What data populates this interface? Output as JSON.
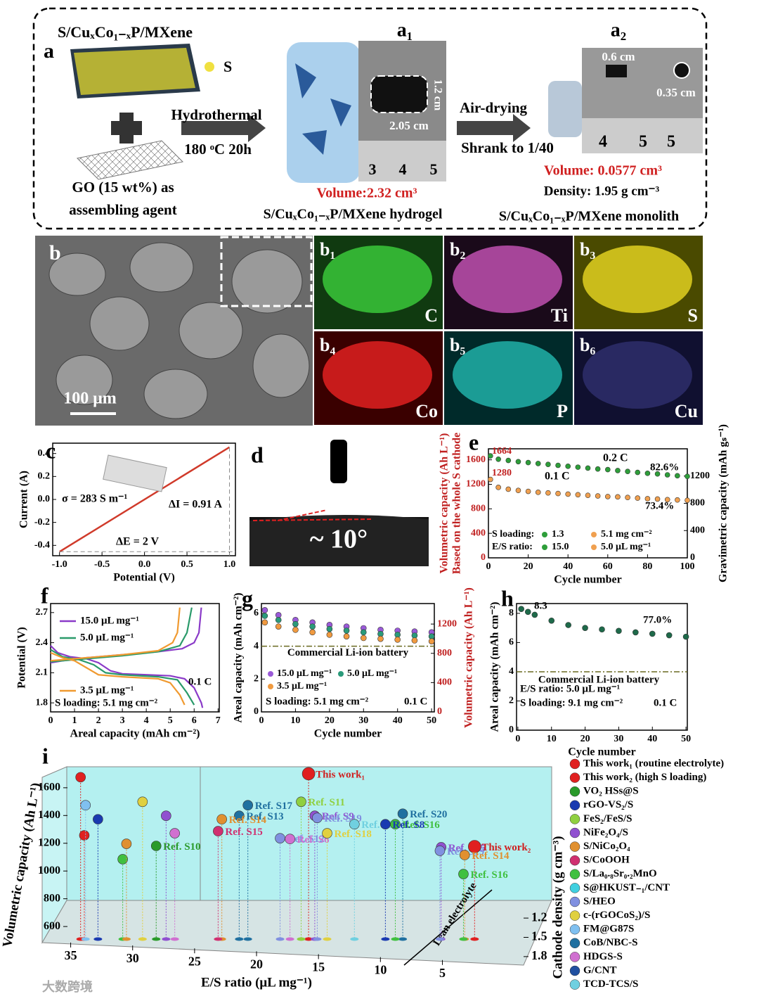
{
  "figure": {
    "a": {
      "label": "a",
      "material": "S/CuₓCo₁₋ₓP/MXene",
      "s_label": "S",
      "go_lines": [
        "GO (15 wt%) as",
        "assembling  agent"
      ],
      "step1": [
        "Hydrothermal",
        "180 ᵒC 20h"
      ],
      "a1": {
        "label": "a₁",
        "height": "1.2 cm",
        "width": "2.05 cm",
        "ruler": [
          "3",
          "4",
          "5"
        ],
        "volume": "Volume:2.32 cm³",
        "name": "S/CuₓCo₁₋ₓP/MXene hydrogel"
      },
      "step2": [
        "Air-drying",
        "Shrank  to 1/40"
      ],
      "a2": {
        "label": "a₂",
        "width": "0.6 cm",
        "diameter": "0.35 cm",
        "ruler": [
          "4",
          "5",
          "5"
        ],
        "volume": "Volume: 0.0577 cm³",
        "density": "Density: 1.95 g cm⁻³",
        "name": "S/CuₓCo₁₋ₓP/MXene monolith"
      }
    },
    "b": {
      "label": "b",
      "scale": "100 μm",
      "maps": [
        {
          "label": "b₁",
          "element": "C"
        },
        {
          "label": "b₂",
          "element": "Ti"
        },
        {
          "label": "b₃",
          "element": "S"
        },
        {
          "label": "b₄",
          "element": "Co"
        },
        {
          "label": "b₅",
          "element": "P"
        },
        {
          "label": "b₆",
          "element": "Cu"
        }
      ]
    },
    "d": {
      "label": "d",
      "angle": "~ 10°"
    },
    "watermark": "大数跨境"
  },
  "chart_data": [
    {
      "type": "line",
      "panel_label": "c",
      "xlabel": "Potential (V)",
      "ylabel": "Current (A)",
      "x": [
        -1,
        1
      ],
      "values": [
        -0.455,
        0.455
      ],
      "color": "#d03a2a",
      "xlim": [
        -1.08,
        1.07
      ],
      "ylim": [
        -0.49,
        0.49
      ],
      "xticks": [
        {
          "value": -1,
          "label": "-1.0"
        },
        -0.5,
        {
          "value": 0,
          "label": "0.0"
        },
        0.5,
        {
          "value": 1,
          "label": "1.0"
        }
      ],
      "yticks": [
        0.4,
        0.2,
        {
          "value": 0,
          "label": "0.0"
        },
        -0.2,
        -0.4
      ],
      "annotations": [
        "σ = 283 S m⁻¹",
        "ΔI = 0.91 A",
        "ΔE = 2 V"
      ]
    },
    {
      "type": "scatter",
      "panel_label": "e",
      "xlabel": "Cycle number",
      "ylabel": "Volumetric  capacity  (Ah L⁻¹)",
      "ylabel2": "Based on the whole S cathode",
      "y2label": "Gravimetric capacity (mAh gₛ⁻¹)",
      "x": [
        1,
        5,
        10,
        15,
        20,
        25,
        30,
        35,
        40,
        45,
        50,
        55,
        60,
        65,
        70,
        75,
        80,
        85,
        90,
        95,
        100
      ],
      "series": [
        {
          "name": "0.2 C",
          "color": "#2e9e3a",
          "values": [
            1664,
            1610,
            1590,
            1570,
            1555,
            1540,
            1525,
            1510,
            1495,
            1480,
            1465,
            1450,
            1440,
            1425,
            1410,
            1395,
            1380,
            1370,
            1355,
            1340,
            1330
          ]
        },
        {
          "name": "0.1 C",
          "color": "#f0a050",
          "values": [
            1280,
            1150,
            1120,
            1100,
            1085,
            1070,
            1060,
            1050,
            1040,
            1030,
            1020,
            1010,
            1000,
            995,
            985,
            975,
            965,
            960,
            950,
            945,
            940
          ]
        }
      ],
      "xlim": [
        0,
        100
      ],
      "ylim": [
        0,
        1780
      ],
      "y2lim": [
        0,
        1600
      ],
      "xticks": [
        0,
        20,
        40,
        60,
        80,
        100
      ],
      "yticks": [
        0,
        400,
        800,
        1200,
        1600
      ],
      "y2ticks": [
        0,
        400,
        800,
        1200
      ],
      "annotations": [
        "1664",
        "1280",
        "82.6%",
        "73.4%",
        "S loading:",
        "1.3",
        "5.1 mg cm⁻²",
        "E/S ratio:",
        "15.0",
        "5.0 μL mg⁻¹"
      ]
    },
    {
      "type": "line",
      "panel_label": "f",
      "xlabel": "Areal capacity (mAh cm⁻²)",
      "ylabel": "Potential (V)",
      "series": [
        {
          "name": "15.0 μL mg⁻¹",
          "color": "#8a3ac8",
          "x": [
            0,
            0.3,
            0.8,
            1.5,
            2,
            2.5,
            3,
            4,
            5,
            5.6,
            6,
            6.3,
            6.35,
            null,
            0,
            0.5,
            1.5,
            3,
            4.5,
            5.5,
            6,
            6.2,
            6.3
          ],
          "values": [
            2.37,
            2.3,
            2.26,
            2.24,
            2.2,
            2.12,
            2.09,
            2.08,
            2.07,
            2.04,
            1.95,
            1.8,
            1.75,
            null,
            2.2,
            2.22,
            2.25,
            2.28,
            2.31,
            2.34,
            2.4,
            2.5,
            2.75
          ]
        },
        {
          "name": "5.0  μL mg⁻¹",
          "color": "#2a9a6a",
          "x": [
            0,
            0.5,
            1.2,
            1.8,
            2.3,
            3,
            4.5,
            5.3,
            5.7,
            6,
            null,
            0,
            1.5,
            3,
            4.5,
            5.4,
            5.7,
            5.9
          ],
          "values": [
            2.33,
            2.26,
            2.23,
            2.18,
            2.1,
            2.08,
            2.06,
            2.03,
            1.9,
            1.78,
            null,
            2.21,
            2.24,
            2.27,
            2.31,
            2.37,
            2.5,
            2.75
          ]
        },
        {
          "name": "3.5  μL mg⁻¹",
          "color": "#f09a30",
          "x": [
            0,
            0.5,
            1,
            1.5,
            2,
            3,
            4.5,
            5,
            5.4,
            5.6,
            null,
            0,
            1.5,
            3,
            4.5,
            5.1,
            5.3,
            5.4
          ],
          "values": [
            2.3,
            2.25,
            2.22,
            2.15,
            2.08,
            2.06,
            2.04,
            2,
            1.88,
            1.78,
            null,
            2.22,
            2.25,
            2.28,
            2.32,
            2.4,
            2.5,
            2.75
          ]
        }
      ],
      "xlim": [
        0,
        7.05
      ],
      "ylim": [
        1.71,
        2.79
      ],
      "xticks": [
        0,
        1,
        2,
        3,
        4,
        5,
        6,
        7
      ],
      "yticks": [
        1.8,
        2.1,
        2.4,
        2.7
      ],
      "annotations": [
        "0.1 C",
        "S loading: 5.1 mg cm⁻²"
      ]
    },
    {
      "type": "scatter",
      "panel_label": "g",
      "xlabel": "Cycle number",
      "ylabel": "Areal capacity (mAh cm⁻²)",
      "y2label": "Volumetric capacity (Ah L⁻¹)",
      "x": [
        1,
        5,
        10,
        15,
        20,
        25,
        30,
        35,
        40,
        45,
        50
      ],
      "series": [
        {
          "name": "15.0 μL mg⁻¹",
          "color": "#9a5ad8",
          "values": [
            6.2,
            5.9,
            5.6,
            5.45,
            5.3,
            5.2,
            5.1,
            5,
            4.95,
            4.9,
            4.85
          ]
        },
        {
          "name": "5.0  μL mg⁻¹",
          "color": "#2a9a7a",
          "values": [
            5.85,
            5.6,
            5.35,
            5.2,
            5.05,
            4.95,
            4.85,
            4.75,
            4.7,
            4.65,
            4.6
          ]
        },
        {
          "name": "3.5  μL mg⁻¹",
          "color": "#f09a40",
          "values": [
            5.45,
            5.2,
            5,
            4.85,
            4.7,
            4.6,
            4.5,
            4.45,
            4.4,
            4.35,
            4.3
          ]
        }
      ],
      "reference": 4,
      "reference_label": "Commercial Li-ion battery",
      "xlim": [
        0,
        50.8
      ],
      "ylim": [
        0,
        6.6
      ],
      "y2lim": [
        0,
        1480
      ],
      "xticks": [
        0,
        10,
        20,
        30,
        40,
        50
      ],
      "yticks": [
        0,
        2,
        4,
        6
      ],
      "y2ticks": [
        0,
        400,
        800,
        1200
      ],
      "annotations": [
        "S loading: 5.1 mg cm⁻²",
        "0.1 C"
      ]
    },
    {
      "type": "scatter",
      "panel_label": "h",
      "xlabel": "Cycle number",
      "ylabel": "Areal capacity (mAh cm⁻²)",
      "x": [
        1,
        3,
        5,
        10,
        15,
        20,
        25,
        30,
        35,
        40,
        45,
        50
      ],
      "series": [
        {
          "color": "#1e6a4a",
          "values": [
            8.3,
            8.1,
            7.9,
            7.5,
            7.2,
            7,
            6.9,
            6.8,
            6.7,
            6.6,
            6.5,
            6.4
          ]
        }
      ],
      "reference": 4,
      "reference_label": "Commercial Li-ion battery",
      "xlim": [
        -0.4,
        50.4
      ],
      "ylim": [
        0,
        8.67
      ],
      "xticks": [
        0,
        10,
        20,
        30,
        40,
        50
      ],
      "yticks": [
        0,
        2,
        4,
        6,
        8
      ],
      "annotations": [
        "8.3",
        "77.0%",
        "E/S ratio: 5.0 μL mg⁻¹",
        "S loading: 9.1 mg cm⁻²",
        "0.1 C"
      ]
    },
    {
      "type": "scatter3d",
      "panel_label": "i",
      "xlabel": "E/S ratio (μL mg⁻¹)",
      "ylabel": "Volumetric capacity (Ah L⁻¹)",
      "zlabel": "Cathode density (g cm⁻³)",
      "annotation": "Lean electrolyte",
      "x": [
        15.8,
        16.4,
        20.7,
        15.3,
        15.1,
        21.4,
        22.8,
        23.1,
        18.1,
        17.3,
        14.3,
        12.1,
        8.2,
        8.8,
        9.6,
        5.1,
        5.2,
        2.4,
        3.2,
        3.3,
        28.1,
        34.2,
        33.9,
        33.8,
        32.8,
        30.8,
        30.5,
        27.3,
        29.2,
        26.6
      ],
      "values": [
        1701,
        1499,
        1474,
        1398,
        1383,
        1398,
        1373,
        1287,
        1236,
        1231,
        1272,
        1337,
        1413,
        1337,
        1337,
        1171,
        1146,
        1176,
        1115,
        978,
        1181,
        1676,
        1257,
        1474,
        1373,
        1085,
        1196,
        1398,
        1499,
        1272
      ],
      "labels": [
        "This work₁",
        "Ref. S11",
        "Ref. S17",
        "Ref. S9",
        "Ref. S19",
        "Ref. S13",
        "Ref. S14",
        "Ref. S15",
        "Ref. S12",
        "Ref. S6",
        "Ref. S18",
        "Ref. S7",
        "Ref. S20",
        "Ref. S16",
        "Ref. S8",
        "Ref. S15",
        "Ref. S19",
        "This work₂",
        "Ref. S14",
        "Ref. S16",
        "Ref. S10",
        null,
        null,
        null,
        null,
        null,
        null,
        null,
        null,
        null
      ],
      "colors": [
        "#e02020",
        "#90d040",
        "#2070a0",
        "#9050d0",
        "#8090e0",
        "#2070a0",
        "#e09030",
        "#d03070",
        "#8090e0",
        "#d070d0",
        "#e0d040",
        "#70d0e0",
        "#2070a0",
        "#40c040",
        "#1a3ab0",
        "#9050d0",
        "#8090e0",
        "#e02020",
        "#e09030",
        "#40c040",
        "#2a9a2a",
        "#e02020",
        "#e02020",
        "#80c0f0",
        "#1a3ab0",
        "#40c040",
        "#e09030",
        "#9050d0",
        "#e0d040",
        "#d070d0"
      ],
      "xlim": [
        35.6,
        1
      ],
      "ylim": [
        560,
        1726
      ],
      "zlim": [
        1.1,
        1.9
      ],
      "xticks": [
        35,
        30,
        25,
        20,
        15,
        10,
        5
      ],
      "yticks": [
        600,
        800,
        1000,
        1200,
        1400,
        1600
      ],
      "zticks": [
        1.2,
        1.5,
        1.8
      ],
      "legend": [
        {
          "name": "This work₁ (routine electrolyte)",
          "color": "#e02020"
        },
        {
          "name": "This work₂ (high S loading)",
          "color": "#e02020"
        },
        {
          "name": "VO₂ HSs@S",
          "color": "#2a9a2a"
        },
        {
          "name": "rGO-VS₂/S",
          "color": "#1a3ab0"
        },
        {
          "name": "FeS₂/FeS/S",
          "color": "#90d040"
        },
        {
          "name": "NiFe₂O₄/S",
          "color": "#9050d0"
        },
        {
          "name": "S/NiCo₂O₄",
          "color": "#e09030"
        },
        {
          "name": "S/CoOOH",
          "color": "#d03070"
        },
        {
          "name": "S/La₀.₈Sr₀.₂MnO",
          "color": "#40c040"
        },
        {
          "name": "S@HKUST₋₁/CNT",
          "color": "#40d0e0"
        },
        {
          "name": "S/HEO",
          "color": "#8090e0"
        },
        {
          "name": "c-(rGOCoS₂)/S",
          "color": "#e0d040"
        },
        {
          "name": "FM@G87S",
          "color": "#80c0f0"
        },
        {
          "name": "CoB/NBC-S",
          "color": "#2070a0"
        },
        {
          "name": "HDGS-S",
          "color": "#d070d0"
        },
        {
          "name": "G/CNT",
          "color": "#2050a0"
        },
        {
          "name": "TCD-TCS/S",
          "color": "#70d0e0"
        }
      ]
    }
  ]
}
